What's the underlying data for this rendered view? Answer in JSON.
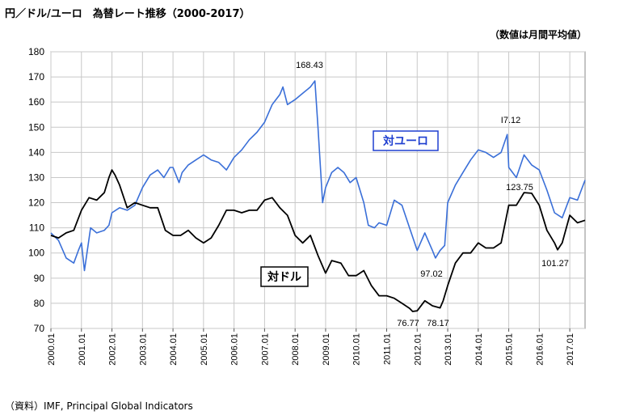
{
  "title": "円／ドル/ユーロ　為替レート推移（2000-2017）",
  "note": "（数値は月間平均値）",
  "source": "（資料）IMF, Principal Global Indicators",
  "chart_data": {
    "type": "line",
    "title": "円／ドル/ユーロ　為替レート推移（2000-2017）",
    "ylim": [
      70,
      180
    ],
    "yticks": [
      70,
      80,
      90,
      100,
      110,
      120,
      130,
      140,
      150,
      160,
      170,
      180
    ],
    "xlim": [
      2000.0,
      2017.5
    ],
    "xtick_labels": [
      "2000.01",
      "2001.01",
      "2002.01",
      "2003.01",
      "2004.01",
      "2005.01",
      "2006.01",
      "2007.01",
      "2008.01",
      "2009.01",
      "2010.01",
      "2011.01",
      "2012.01",
      "2013.01",
      "2014.01",
      "2015.01",
      "2016.01",
      "2017.01"
    ],
    "grid": true,
    "series": [
      {
        "name": "対ユーロ",
        "color": "#3a6fd8",
        "x": [
          2000.0,
          2000.25,
          2000.5,
          2000.75,
          2000.9,
          2001.0,
          2001.1,
          2001.3,
          2001.5,
          2001.75,
          2001.9,
          2002.0,
          2002.25,
          2002.5,
          2002.75,
          2003.0,
          2003.25,
          2003.5,
          2003.7,
          2003.9,
          2004.0,
          2004.2,
          2004.3,
          2004.5,
          2004.75,
          2005.0,
          2005.25,
          2005.5,
          2005.75,
          2006.0,
          2006.25,
          2006.5,
          2006.75,
          2007.0,
          2007.25,
          2007.5,
          2007.6,
          2007.75,
          2008.0,
          2008.2,
          2008.5,
          2008.65,
          2008.75,
          2008.9,
          2009.0,
          2009.2,
          2009.4,
          2009.6,
          2009.8,
          2010.0,
          2010.25,
          2010.4,
          2010.6,
          2010.75,
          2011.0,
          2011.25,
          2011.5,
          2011.75,
          2012.0,
          2012.25,
          2012.5,
          2012.6,
          2012.75,
          2012.9,
          2013.0,
          2013.25,
          2013.5,
          2013.75,
          2014.0,
          2014.25,
          2014.5,
          2014.75,
          2014.95,
          2015.0,
          2015.25,
          2015.5,
          2015.75,
          2016.0,
          2016.25,
          2016.5,
          2016.75,
          2017.0,
          2017.25,
          2017.5
        ],
        "values": [
          108,
          105,
          98,
          96,
          101,
          104,
          93,
          110,
          108,
          109,
          111,
          116,
          118,
          117,
          119,
          126,
          131,
          133,
          130,
          134,
          134,
          128,
          132,
          135,
          137,
          139,
          137,
          136,
          133,
          138,
          141,
          145,
          148,
          152,
          159,
          163,
          166,
          159,
          161,
          163,
          166,
          168.43,
          150,
          120,
          126,
          132,
          134,
          132,
          128,
          130,
          120,
          111,
          110,
          112,
          111,
          121,
          119,
          110,
          101,
          108,
          101,
          98,
          101,
          103,
          120,
          127,
          132,
          137,
          141,
          140,
          138,
          140,
          147.12,
          134,
          130,
          139,
          135,
          133,
          125,
          116,
          114,
          122,
          121,
          129
        ]
      },
      {
        "name": "対ドル",
        "color": "#000000",
        "x": [
          2000.0,
          2000.25,
          2000.5,
          2000.75,
          2001.0,
          2001.25,
          2001.5,
          2001.75,
          2001.9,
          2002.0,
          2002.1,
          2002.25,
          2002.5,
          2002.75,
          2003.0,
          2003.25,
          2003.5,
          2003.75,
          2004.0,
          2004.25,
          2004.5,
          2004.75,
          2005.0,
          2005.25,
          2005.5,
          2005.75,
          2006.0,
          2006.25,
          2006.5,
          2006.75,
          2007.0,
          2007.25,
          2007.5,
          2007.75,
          2008.0,
          2008.25,
          2008.5,
          2008.75,
          2009.0,
          2009.2,
          2009.5,
          2009.75,
          2010.0,
          2010.25,
          2010.5,
          2010.75,
          2011.0,
          2011.25,
          2011.5,
          2011.75,
          2011.85,
          2012.0,
          2012.25,
          2012.5,
          2012.75,
          2012.85,
          2013.0,
          2013.25,
          2013.5,
          2013.75,
          2014.0,
          2014.25,
          2014.5,
          2014.75,
          2015.0,
          2015.25,
          2015.5,
          2015.75,
          2016.0,
          2016.25,
          2016.5,
          2016.6,
          2016.75,
          2017.0,
          2017.25,
          2017.5
        ],
        "values": [
          107,
          106,
          108,
          109,
          117,
          122,
          121,
          124,
          130,
          133,
          131,
          127,
          118,
          120,
          119,
          118,
          118,
          109,
          107,
          107,
          109,
          106,
          104,
          106,
          111,
          117,
          117,
          116,
          117,
          117,
          121,
          122,
          118,
          115,
          107,
          104,
          107,
          99,
          92,
          97,
          96,
          91,
          91,
          93,
          87,
          83,
          83,
          82,
          80,
          78,
          76.77,
          77,
          81,
          79,
          78.17,
          81,
          87,
          96,
          100,
          100,
          104,
          102,
          102,
          104,
          119,
          119,
          124,
          123.75,
          119,
          109,
          104,
          101.27,
          104,
          115,
          112,
          113
        ]
      }
    ],
    "annotations": [
      {
        "text": "168.43"
      },
      {
        "text": "I7.12"
      },
      {
        "text": "123.75"
      },
      {
        "text": "101.27"
      },
      {
        "text": "97.02"
      },
      {
        "text": "76.77"
      },
      {
        "text": "78.17"
      }
    ],
    "series_labels": [
      "対ユーロ",
      "対ドル"
    ]
  }
}
